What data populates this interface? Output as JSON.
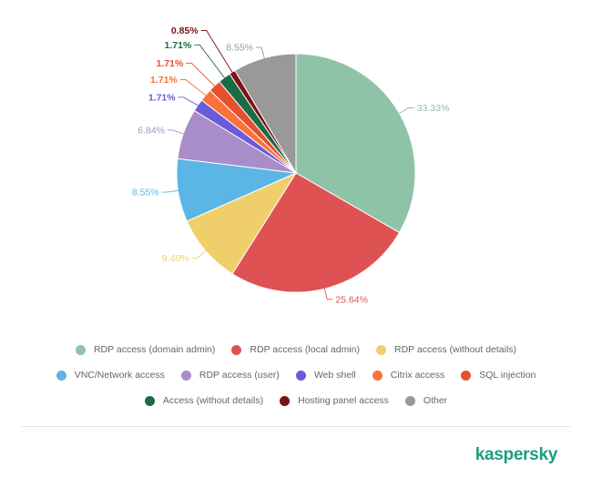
{
  "chart_data": {
    "type": "pie",
    "title": "",
    "start_angle_deg": 0,
    "direction": "clockwise",
    "slices": [
      {
        "label": "RDP access (domain admin)",
        "value": 33.33,
        "display": "33.33%",
        "color": "#8ec3a7"
      },
      {
        "label": "RDP access (local admin)",
        "value": 25.64,
        "display": "25.64%",
        "color": "#de5254"
      },
      {
        "label": "RDP access (without details)",
        "value": 9.4,
        "display": "9.40%",
        "color": "#f0cf6a"
      },
      {
        "label": "VNC/Network access",
        "value": 8.55,
        "display": "8.55%",
        "color": "#5bb6e5"
      },
      {
        "label": "RDP access (user)",
        "value": 6.84,
        "display": "6.84%",
        "color": "#a98dcb"
      },
      {
        "label": "Web shell",
        "value": 1.71,
        "display": "1.71%",
        "color": "#6a5bd8"
      },
      {
        "label": "Citrix access",
        "value": 1.71,
        "display": "1.71%",
        "color": "#f9713b"
      },
      {
        "label": "SQL injection",
        "value": 1.71,
        "display": "1.71%",
        "color": "#e5502f"
      },
      {
        "label": "Access (without details)",
        "value": 1.71,
        "display": "1.71%",
        "color": "#1d6b45"
      },
      {
        "label": "Hosting panel access",
        "value": 0.85,
        "display": "0.85%",
        "color": "#7a1216"
      },
      {
        "label": "Other",
        "value": 8.55,
        "display": "8.55%",
        "color": "#999999"
      }
    ],
    "legend_position": "bottom"
  },
  "brand": {
    "name": "kaspersky",
    "color": "#1a9e7e"
  }
}
